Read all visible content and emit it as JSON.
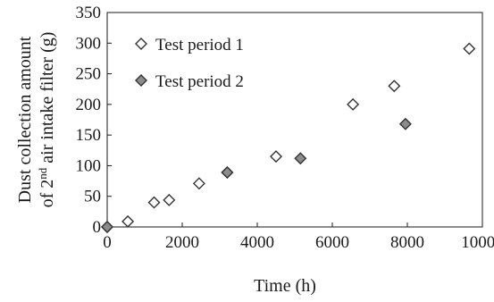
{
  "chart_data": {
    "type": "scatter",
    "title": "",
    "xlabel": "Time  (h)",
    "ylabel_line1": "Dust collection amount",
    "ylabel_line2_prefix": "of 2",
    "ylabel_line2_sup": "nd",
    "ylabel_line2_suffix": " air intake filter  (g)",
    "xlim": [
      0,
      10000
    ],
    "ylim": [
      0,
      350
    ],
    "x_ticks": [
      0,
      2000,
      4000,
      6000,
      8000,
      10000
    ],
    "y_ticks": [
      0,
      50,
      100,
      150,
      200,
      250,
      300,
      350
    ],
    "grid": false,
    "legend_position": "top-left",
    "series": [
      {
        "name": "Test period 1",
        "marker": "open-diamond",
        "color": "#ffffff",
        "stroke": "#333333",
        "points": [
          {
            "x": 0,
            "y": 0
          },
          {
            "x": 550,
            "y": 9
          },
          {
            "x": 1250,
            "y": 40
          },
          {
            "x": 1650,
            "y": 44
          },
          {
            "x": 2450,
            "y": 71
          },
          {
            "x": 3200,
            "y": 89
          },
          {
            "x": 4500,
            "y": 115
          },
          {
            "x": 6550,
            "y": 200
          },
          {
            "x": 7650,
            "y": 230
          },
          {
            "x": 9650,
            "y": 291
          }
        ]
      },
      {
        "name": "Test period 2",
        "marker": "filled-diamond",
        "color": "#8c8c8c",
        "stroke": "#333333",
        "points": [
          {
            "x": 0,
            "y": 0
          },
          {
            "x": 3200,
            "y": 89
          },
          {
            "x": 5150,
            "y": 112
          },
          {
            "x": 7950,
            "y": 168
          }
        ]
      }
    ]
  }
}
